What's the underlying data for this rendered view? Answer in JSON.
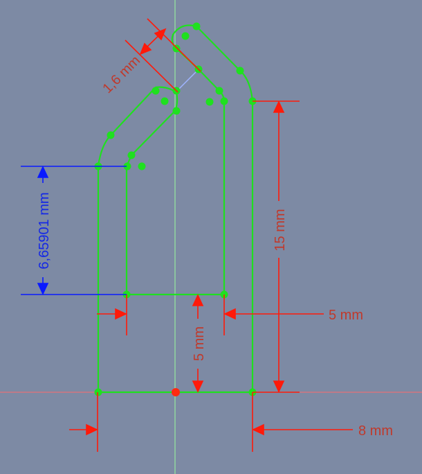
{
  "colors": {
    "background": "#7d8aa4",
    "geometry": "#1fe01f",
    "vertex": "#1fe01f",
    "origin": "#ff2a10",
    "dim_red": "#ff1a0a",
    "dim_red_text": "#c0392b",
    "dim_blue": "#0a1aff",
    "dim_blue_text": "#1428e6",
    "axis_vertical": "#9bff9b",
    "axis_horizontal": "#ff6b6b",
    "construction": "#9fb4ff"
  },
  "dimensions": {
    "thickness": "1,6 mm",
    "height": "15 mm",
    "inner_width": "5 mm",
    "inner_height": "5 mm",
    "outer_width": "8 mm",
    "blue_height": "6,65901 mm"
  },
  "icons": {
    "origin": "origin-point-icon"
  }
}
